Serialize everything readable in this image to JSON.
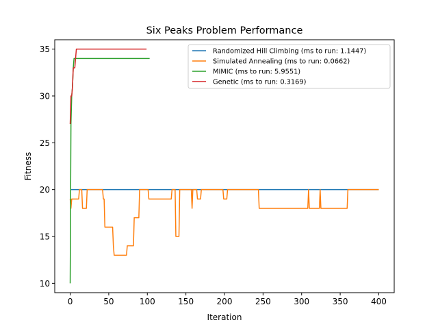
{
  "chart_data": {
    "type": "line",
    "title": "Six Peaks Problem Performance",
    "xlabel": "Iteration",
    "ylabel": "Fitness",
    "xlim": [
      -20,
      420
    ],
    "ylim": [
      9,
      36
    ],
    "xticks": [
      0,
      50,
      100,
      150,
      200,
      250,
      300,
      350,
      400
    ],
    "yticks": [
      10,
      15,
      20,
      25,
      30,
      35
    ],
    "grid": false,
    "legend_position": "top-right",
    "series": [
      {
        "name": "Randomized Hill Climbing (ms to run: 1.1447)",
        "color": "#1f77b4",
        "points": [
          [
            0,
            20
          ],
          [
            400,
            20
          ]
        ]
      },
      {
        "name": "Simulated Annealing (ms to run: 0.0662)",
        "color": "#ff7f0e",
        "points": [
          [
            0,
            19
          ],
          [
            1,
            18
          ],
          [
            2,
            19
          ],
          [
            11,
            19
          ],
          [
            12,
            20
          ],
          [
            15,
            20
          ],
          [
            16,
            18
          ],
          [
            21,
            18
          ],
          [
            22,
            20
          ],
          [
            42,
            20
          ],
          [
            43,
            19
          ],
          [
            44,
            19
          ],
          [
            45,
            16
          ],
          [
            55,
            16
          ],
          [
            56,
            14
          ],
          [
            57,
            13
          ],
          [
            73,
            13
          ],
          [
            74,
            14
          ],
          [
            82,
            14
          ],
          [
            83,
            17
          ],
          [
            89,
            17
          ],
          [
            90,
            20
          ],
          [
            101,
            20
          ],
          [
            102,
            19
          ],
          [
            131,
            19
          ],
          [
            132,
            20
          ],
          [
            136,
            20
          ],
          [
            137,
            15
          ],
          [
            141,
            15
          ],
          [
            142,
            20
          ],
          [
            157,
            20
          ],
          [
            158,
            18
          ],
          [
            159,
            20
          ],
          [
            164,
            20
          ],
          [
            165,
            19
          ],
          [
            169,
            19
          ],
          [
            170,
            20
          ],
          [
            198,
            20
          ],
          [
            199,
            19
          ],
          [
            203,
            19
          ],
          [
            204,
            20
          ],
          [
            244,
            20
          ],
          [
            245,
            18
          ],
          [
            308,
            18
          ],
          [
            309,
            20
          ],
          [
            310,
            18
          ],
          [
            323,
            18
          ],
          [
            324,
            20
          ],
          [
            325,
            18
          ],
          [
            359,
            18
          ],
          [
            360,
            20
          ],
          [
            400,
            20
          ]
        ]
      },
      {
        "name": "MIMIC (ms to run: 5.9551)",
        "color": "#2ca02c",
        "points": [
          [
            0,
            10
          ],
          [
            1,
            27
          ],
          [
            2,
            30
          ],
          [
            3,
            31
          ],
          [
            4,
            33
          ],
          [
            5,
            34
          ],
          [
            103,
            34
          ]
        ]
      },
      {
        "name": "Genetic (ms to run: 0.3169)",
        "color": "#d62728",
        "points": [
          [
            0,
            27
          ],
          [
            1,
            30
          ],
          [
            2,
            30
          ],
          [
            3,
            31
          ],
          [
            4,
            33
          ],
          [
            6,
            33
          ],
          [
            7,
            34
          ],
          [
            8,
            35
          ],
          [
            99,
            35
          ]
        ]
      }
    ]
  }
}
